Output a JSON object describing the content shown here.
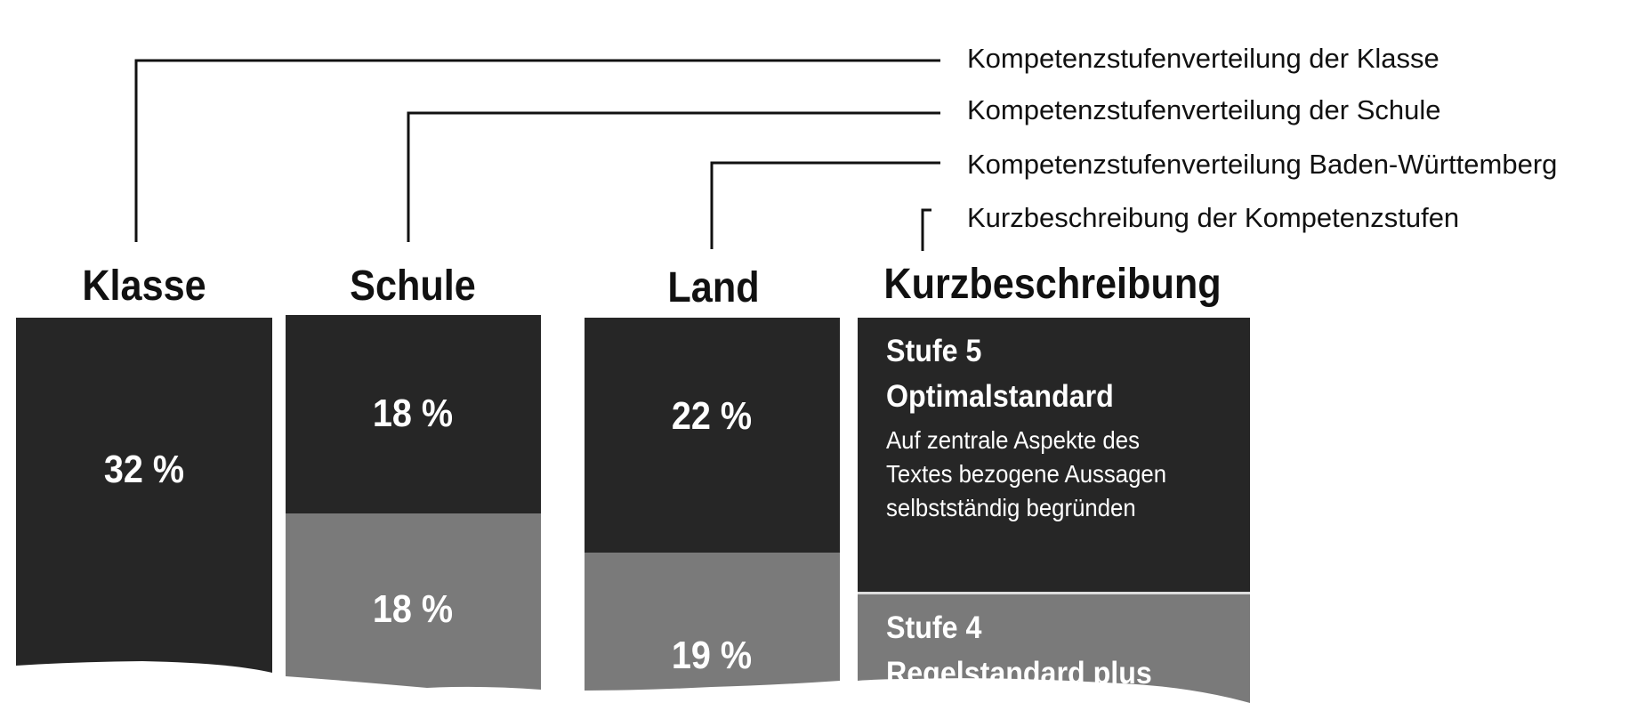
{
  "legend": {
    "klasse": "Kompetenzstufenverteilung der Klasse",
    "schule": "Kompetenzstufenverteilung der Schule",
    "land": "Kompetenzstufenverteilung Baden-Württemberg",
    "kurz": "Kurzbeschreibung der Kompetenzstufen"
  },
  "columns": {
    "klasse": {
      "title": "Klasse",
      "stufe5": "32 %"
    },
    "schule": {
      "title": "Schule",
      "stufe5": "18 %",
      "stufe4": "18 %"
    },
    "land": {
      "title": "Land",
      "stufe5": "22 %",
      "stufe4": "19 %"
    },
    "kurz": {
      "title": "Kurzbeschreibung"
    }
  },
  "stufen": {
    "s5": {
      "level": "Stufe 5",
      "name": "Optimalstandard",
      "lines": [
        "Auf zentrale Aspekte des",
        "Textes bezogene Aussagen",
        "selbstständig begründen"
      ]
    },
    "s4": {
      "level": "Stufe 4",
      "name": "Regelstandard plus"
    }
  },
  "colors": {
    "stufe5": "#262626",
    "stufe4": "#7a7a7a",
    "lines": "#111111"
  }
}
